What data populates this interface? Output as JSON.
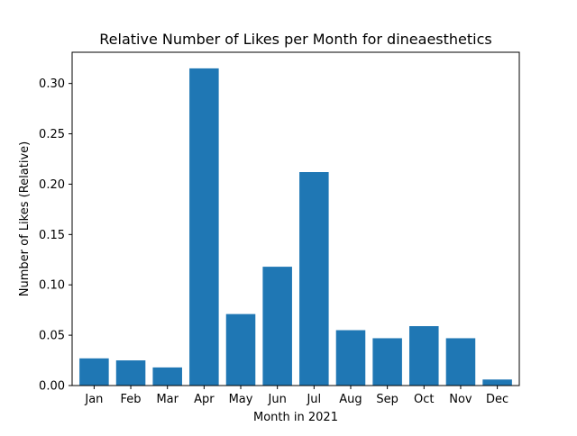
{
  "chart_data": {
    "type": "bar",
    "title": "Relative Number of Likes per Month for dineaesthetics",
    "xlabel": "Month in 2021",
    "ylabel": "Number of Likes (Relative)",
    "categories": [
      "Jan",
      "Feb",
      "Mar",
      "Apr",
      "May",
      "Jun",
      "Jul",
      "Aug",
      "Sep",
      "Oct",
      "Nov",
      "Dec"
    ],
    "values": [
      0.027,
      0.025,
      0.018,
      0.315,
      0.071,
      0.118,
      0.212,
      0.055,
      0.047,
      0.059,
      0.047,
      0.006
    ],
    "ylim": [
      0,
      0.331
    ],
    "yticks": [
      0.0,
      0.05,
      0.1,
      0.15,
      0.2,
      0.25,
      0.3
    ],
    "ytick_labels": [
      "0.00",
      "0.05",
      "0.10",
      "0.15",
      "0.20",
      "0.25",
      "0.30"
    ],
    "grid": false,
    "bar_color": "#1f77b4"
  }
}
